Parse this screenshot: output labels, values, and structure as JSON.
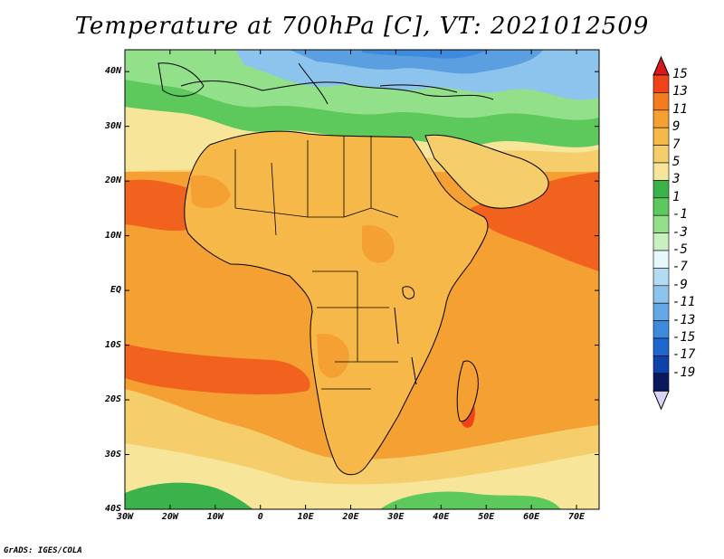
{
  "title": "Temperature at 700hPa [C], VT: 2021012509",
  "footer": "GrADS: IGES/COLA",
  "map": {
    "lat_labels": [
      "40N",
      "30N",
      "20N",
      "10N",
      "EQ",
      "10S",
      "20S",
      "30S",
      "40S"
    ],
    "lon_labels": [
      "30W",
      "20W",
      "10W",
      "0",
      "10E",
      "20E",
      "30E",
      "40E",
      "50E",
      "60E",
      "70E"
    ],
    "lat_range": [
      -40,
      44
    ],
    "lon_range": [
      -30,
      75
    ]
  },
  "colorbar": {
    "labels": [
      "15",
      "13",
      "11",
      "9",
      "7",
      "5",
      "3",
      "1",
      "-1",
      "-3",
      "-5",
      "-7",
      "-9",
      "-11",
      "-13",
      "-15",
      "-17",
      "-19"
    ],
    "colors": [
      "#d7191c",
      "#f0431a",
      "#f57c1e",
      "#f5a032",
      "#f7b84a",
      "#f5cd6a",
      "#f7e59a",
      "#3cb34a",
      "#5dc85c",
      "#93e08a",
      "#c8f0c0",
      "#e6f8fb",
      "#b3dcf2",
      "#8cc4ee",
      "#64a8e6",
      "#3e8add",
      "#1f66cf",
      "#0d42a8",
      "#08195e",
      "#d8d4f5"
    ]
  },
  "palette": {
    "ocean_warm": "#f5a032",
    "ocean_hot": "#f0621e",
    "land_warm": "#f7b84a",
    "north_cool": "#93e08a",
    "north_cold": "#5b9fe0",
    "south_cool": "#f5cd6a",
    "south_band": "#3cb34a",
    "border": "#000000"
  }
}
